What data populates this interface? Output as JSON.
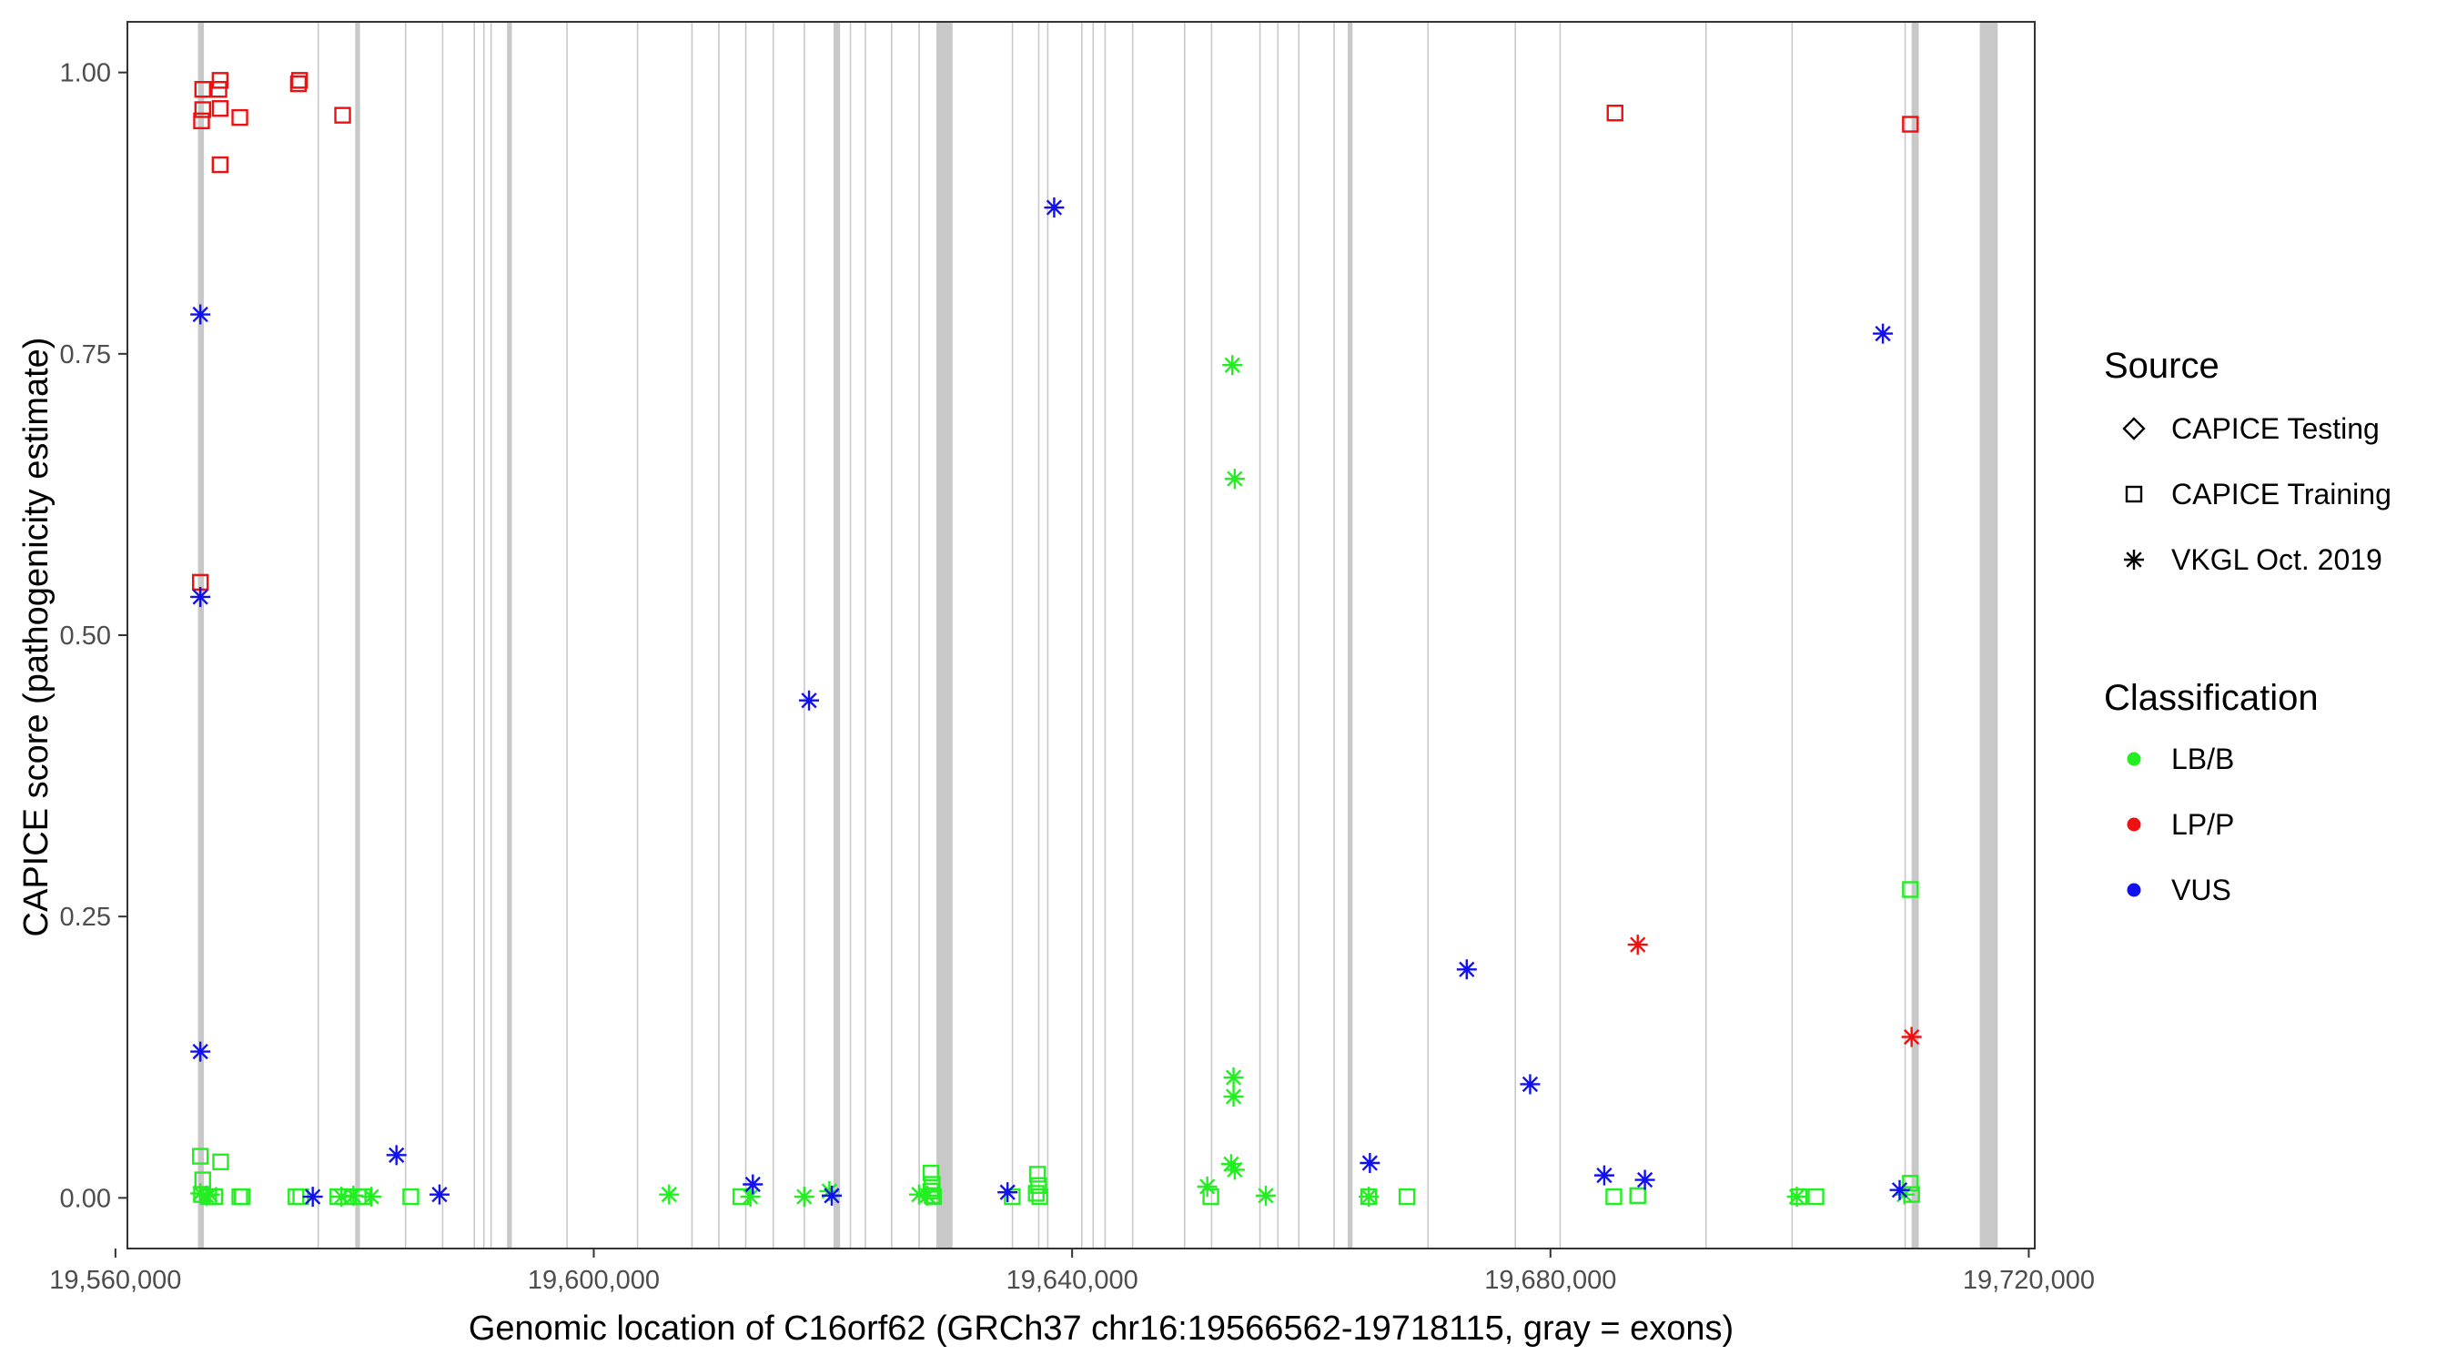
{
  "chart_data": {
    "type": "scatter",
    "xlabel": "Genomic location of C16orf62 (GRCh37 chr16:19566562-19718115, gray = exons)",
    "ylabel": "CAPICE score (pathogenicity estimate)",
    "xlim": [
      19561000,
      19720500
    ],
    "ylim": [
      -0.045,
      1.045
    ],
    "x_ticks": [
      {
        "value": 19560000,
        "label": "19,560,000"
      },
      {
        "value": 19600000,
        "label": "19,600,000"
      },
      {
        "value": 19640000,
        "label": "19,640,000"
      },
      {
        "value": 19680000,
        "label": "19,680,000"
      },
      {
        "value": 19720000,
        "label": "19,720,000"
      }
    ],
    "y_ticks": [
      {
        "value": 0.0,
        "label": "0.00"
      },
      {
        "value": 0.25,
        "label": "0.25"
      },
      {
        "value": 0.5,
        "label": "0.50"
      },
      {
        "value": 0.75,
        "label": "0.75"
      },
      {
        "value": 1.0,
        "label": "1.00"
      }
    ],
    "grid": false,
    "exons": [
      [
        19566900,
        19567400
      ],
      [
        19576900,
        19577000
      ],
      [
        19580050,
        19580450
      ],
      [
        19584200,
        19584300
      ],
      [
        19587300,
        19587400
      ],
      [
        19589950,
        19590050
      ],
      [
        19590750,
        19590850
      ],
      [
        19591350,
        19591450
      ],
      [
        19592750,
        19593150
      ],
      [
        19597700,
        19597800
      ],
      [
        19603600,
        19603700
      ],
      [
        19608150,
        19608250
      ],
      [
        19610400,
        19610500
      ],
      [
        19612650,
        19612750
      ],
      [
        19614950,
        19615050
      ],
      [
        19617550,
        19617650
      ],
      [
        19620050,
        19620600
      ],
      [
        19621400,
        19621500
      ],
      [
        19622650,
        19622750
      ],
      [
        19624850,
        19624950
      ],
      [
        19627150,
        19627250
      ],
      [
        19628650,
        19630000
      ],
      [
        19634950,
        19635050
      ],
      [
        19637150,
        19637250
      ],
      [
        19637900,
        19638000
      ],
      [
        19640750,
        19640850
      ],
      [
        19641700,
        19641800
      ],
      [
        19642700,
        19642800
      ],
      [
        19645000,
        19645100
      ],
      [
        19649350,
        19649450
      ],
      [
        19651600,
        19651700
      ],
      [
        19655650,
        19655750
      ],
      [
        19657150,
        19657250
      ],
      [
        19658900,
        19659000
      ],
      [
        19661850,
        19661950
      ],
      [
        19663050,
        19663450
      ],
      [
        19669700,
        19669800
      ],
      [
        19677000,
        19677100
      ],
      [
        19680750,
        19680850
      ],
      [
        19692950,
        19693050
      ],
      [
        19700150,
        19700250
      ],
      [
        19709600,
        19709700
      ],
      [
        19710200,
        19710800
      ],
      [
        19715900,
        19717400
      ]
    ],
    "series": [
      {
        "source": "CAPICE Training",
        "classification": "LP/P",
        "points": [
          [
            19567300,
            0.985
          ],
          [
            19567300,
            0.967
          ],
          [
            19567200,
            0.957
          ],
          [
            19567100,
            0.547
          ],
          [
            19568750,
            0.993
          ],
          [
            19568650,
            0.985
          ],
          [
            19568750,
            0.968
          ],
          [
            19568750,
            0.918
          ],
          [
            19570400,
            0.96
          ],
          [
            19575400,
            0.993
          ],
          [
            19575300,
            0.99
          ],
          [
            19579000,
            0.962
          ],
          [
            19685400,
            0.964
          ],
          [
            19710100,
            0.954
          ]
        ]
      },
      {
        "source": "CAPICE Training",
        "classification": "LB/B",
        "points": [
          [
            19567100,
            0.037
          ],
          [
            19567300,
            0.016
          ],
          [
            19567200,
            0.003
          ],
          [
            19567800,
            0.001
          ],
          [
            19568800,
            0.032
          ],
          [
            19568300,
            0.001
          ],
          [
            19570400,
            0.001
          ],
          [
            19570600,
            0.001
          ],
          [
            19575100,
            0.001
          ],
          [
            19575500,
            0.001
          ],
          [
            19578600,
            0.001
          ],
          [
            19579500,
            0.001
          ],
          [
            19580300,
            0.001
          ],
          [
            19580700,
            0.001
          ],
          [
            19584700,
            0.001
          ],
          [
            19612300,
            0.001
          ],
          [
            19628200,
            0.022
          ],
          [
            19628300,
            0.012
          ],
          [
            19628200,
            0.006
          ],
          [
            19628300,
            0.002
          ],
          [
            19628400,
            0.001
          ],
          [
            19635000,
            0.001
          ],
          [
            19637100,
            0.021
          ],
          [
            19637200,
            0.011
          ],
          [
            19637000,
            0.004
          ],
          [
            19637300,
            0.001
          ],
          [
            19651600,
            0.001
          ],
          [
            19664800,
            0.001
          ],
          [
            19668000,
            0.001
          ],
          [
            19685300,
            0.001
          ],
          [
            19687300,
            0.002
          ],
          [
            19700800,
            0.001
          ],
          [
            19702200,
            0.001
          ],
          [
            19710100,
            0.274
          ],
          [
            19710100,
            0.013
          ],
          [
            19710200,
            0.003
          ]
        ]
      },
      {
        "source": "VKGL Oct. 2019",
        "classification": "LB/B",
        "points": [
          [
            19567100,
            0.004
          ],
          [
            19567600,
            0.002
          ],
          [
            19567900,
            0.003
          ],
          [
            19578900,
            0.001
          ],
          [
            19579900,
            0.002
          ],
          [
            19581400,
            0.001
          ],
          [
            19606300,
            0.003
          ],
          [
            19613100,
            0.001
          ],
          [
            19617600,
            0.001
          ],
          [
            19619700,
            0.006
          ],
          [
            19627200,
            0.003
          ],
          [
            19627900,
            0.002
          ],
          [
            19651300,
            0.01
          ],
          [
            19653400,
            0.74
          ],
          [
            19653600,
            0.639
          ],
          [
            19653500,
            0.107
          ],
          [
            19653500,
            0.09
          ],
          [
            19653300,
            0.03
          ],
          [
            19653600,
            0.025
          ],
          [
            19656200,
            0.002
          ],
          [
            19664800,
            0.001
          ],
          [
            19700600,
            0.001
          ],
          [
            19709600,
            0.003
          ]
        ]
      },
      {
        "source": "VKGL Oct. 2019",
        "classification": "LP/P",
        "points": [
          [
            19687300,
            0.225
          ],
          [
            19710200,
            0.143
          ]
        ]
      },
      {
        "source": "VKGL Oct. 2019",
        "classification": "VUS",
        "points": [
          [
            19567100,
            0.785
          ],
          [
            19567100,
            0.534
          ],
          [
            19567100,
            0.13
          ],
          [
            19576500,
            0.001
          ],
          [
            19583500,
            0.038
          ],
          [
            19587100,
            0.003
          ],
          [
            19613300,
            0.012
          ],
          [
            19618000,
            0.442
          ],
          [
            19619900,
            0.002
          ],
          [
            19634600,
            0.005
          ],
          [
            19638500,
            0.88
          ],
          [
            19664900,
            0.031
          ],
          [
            19673000,
            0.203
          ],
          [
            19678300,
            0.101
          ],
          [
            19684500,
            0.02
          ],
          [
            19687900,
            0.016
          ],
          [
            19707800,
            0.768
          ],
          [
            19709200,
            0.007
          ]
        ]
      }
    ],
    "legend": {
      "placement": "right",
      "shape_title": "Source",
      "shape_entries": [
        {
          "label": "CAPICE Testing",
          "shape": "diamond"
        },
        {
          "label": "CAPICE Training",
          "shape": "square"
        },
        {
          "label": "VKGL Oct. 2019",
          "shape": "asterisk"
        }
      ],
      "color_title": "Classification",
      "color_entries": [
        {
          "label": "LB/B",
          "color": "#22ee22"
        },
        {
          "label": "LP/P",
          "color": "#ee1111"
        },
        {
          "label": "VUS",
          "color": "#1111ee"
        }
      ]
    },
    "colors": {
      "LB/B": "#22ee22",
      "LP/P": "#ee1111",
      "VUS": "#1111ee",
      "exon": "#c8c8c8"
    }
  }
}
